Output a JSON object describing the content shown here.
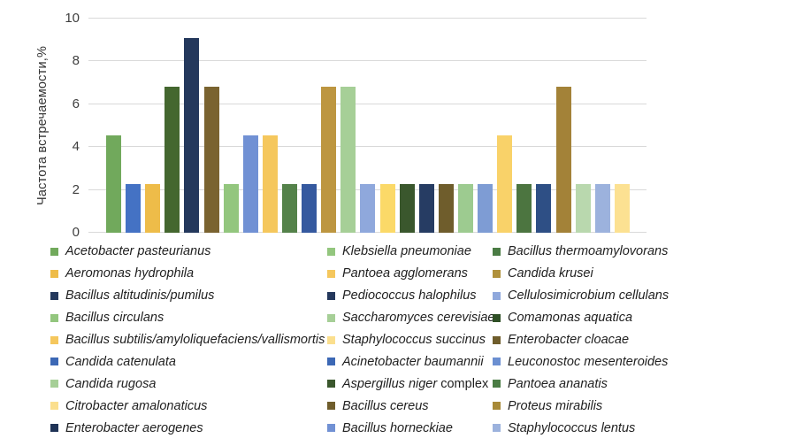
{
  "chart_data": {
    "type": "bar",
    "title": "",
    "xlabel": "",
    "ylabel": "Частота встречаемости,%",
    "ylim": [
      0,
      10
    ],
    "yticks": [
      "0",
      "2",
      "4",
      "6",
      "8",
      "10"
    ],
    "grid": true,
    "legend_position": "bottom",
    "legend_columns": 3,
    "legend_rows_per_column": 9,
    "bars": [
      {
        "value": 4.55,
        "color": "#71a95c"
      },
      {
        "value": 2.27,
        "color": "#4472c4"
      },
      {
        "value": 2.27,
        "color": "#eebc49"
      },
      {
        "value": 6.82,
        "color": "#44672f"
      },
      {
        "value": 9.09,
        "color": "#24385c"
      },
      {
        "value": 6.82,
        "color": "#7a6330"
      },
      {
        "value": 2.27,
        "color": "#93c67e"
      },
      {
        "value": 4.55,
        "color": "#7191d4"
      },
      {
        "value": 4.55,
        "color": "#f5c75d"
      },
      {
        "value": 2.27,
        "color": "#54824a"
      },
      {
        "value": 2.27,
        "color": "#35599f"
      },
      {
        "value": 6.82,
        "color": "#bd9640"
      },
      {
        "value": 6.82,
        "color": "#a6cf97"
      },
      {
        "value": 2.27,
        "color": "#8fa8dc"
      },
      {
        "value": 2.27,
        "color": "#fbd968"
      },
      {
        "value": 2.27,
        "color": "#3a572d"
      },
      {
        "value": 2.27,
        "color": "#263c63"
      },
      {
        "value": 2.27,
        "color": "#6f5d2c"
      },
      {
        "value": 2.27,
        "color": "#9dcb90"
      },
      {
        "value": 2.27,
        "color": "#7e9cd4"
      },
      {
        "value": 4.55,
        "color": "#f9d269"
      },
      {
        "value": 2.27,
        "color": "#4c7540"
      },
      {
        "value": 2.27,
        "color": "#2e4f85"
      },
      {
        "value": 6.82,
        "color": "#a38238"
      },
      {
        "value": 2.27,
        "color": "#b9d8ae"
      },
      {
        "value": 2.27,
        "color": "#9cb2dd"
      },
      {
        "value": 2.27,
        "color": "#fce192"
      }
    ],
    "legend": [
      {
        "label": "Acetobacter pasteurianus",
        "color": "#71a95c"
      },
      {
        "label": "Aeromonas hydrophila",
        "color": "#eebc49"
      },
      {
        "label": "Bacillus altitudinis/pumilus",
        "color": "#24385c"
      },
      {
        "label": "Bacillus circulans",
        "color": "#93c67e"
      },
      {
        "label": "Bacillus subtilis/amyloliquefaciens/vallismortis",
        "color": "#f5c75d"
      },
      {
        "label": "Candida catenulata",
        "color": "#3c68b5"
      },
      {
        "label": "Candida rugosa",
        "color": "#a6cf97"
      },
      {
        "label": "Citrobacter amalonaticus",
        "color": "#fbdf8e"
      },
      {
        "label": "Enterobacter aerogenes",
        "color": "#1f3356"
      },
      {
        "label": "Klebsiella pneumoniae",
        "color": "#93c67e"
      },
      {
        "label": "Pantoea agglomerans",
        "color": "#f5c75d"
      },
      {
        "label": "Pediococcus halophilus",
        "color": "#24385c"
      },
      {
        "label": "Saccharomyces cerevisiae",
        "color": "#a6cf97"
      },
      {
        "label": "Staphylococcus succinus",
        "color": "#fbdf8e"
      },
      {
        "label": "Acinetobacter baumannii",
        "color": "#3c68b5"
      },
      {
        "label": "Aspergillus niger",
        "suffix": " complex",
        "color": "#3a572d"
      },
      {
        "label": "Bacillus cereus",
        "color": "#6f5d2c"
      },
      {
        "label": "Bacillus horneckiae",
        "color": "#7191d4"
      },
      {
        "label": "Bacillus thermoamylovorans",
        "color": "#4a7c44"
      },
      {
        "label": "Candida krusei",
        "color": "#b0913c"
      },
      {
        "label": "Cellulosimicrobium cellulans",
        "color": "#8fa8dc"
      },
      {
        "label": "Comamonas aquatica",
        "color": "#2f4f26"
      },
      {
        "label": "Enterobacter cloacae",
        "color": "#6f5d2c"
      },
      {
        "label": "Leuconostoc mesenteroides",
        "color": "#6b8fd1"
      },
      {
        "label": "Pantoea ananatis",
        "color": "#4a7c44"
      },
      {
        "label": "Proteus mirabilis",
        "color": "#a88a38"
      },
      {
        "label": "Staphylococcus lentus",
        "color": "#9cb2dd"
      }
    ]
  }
}
